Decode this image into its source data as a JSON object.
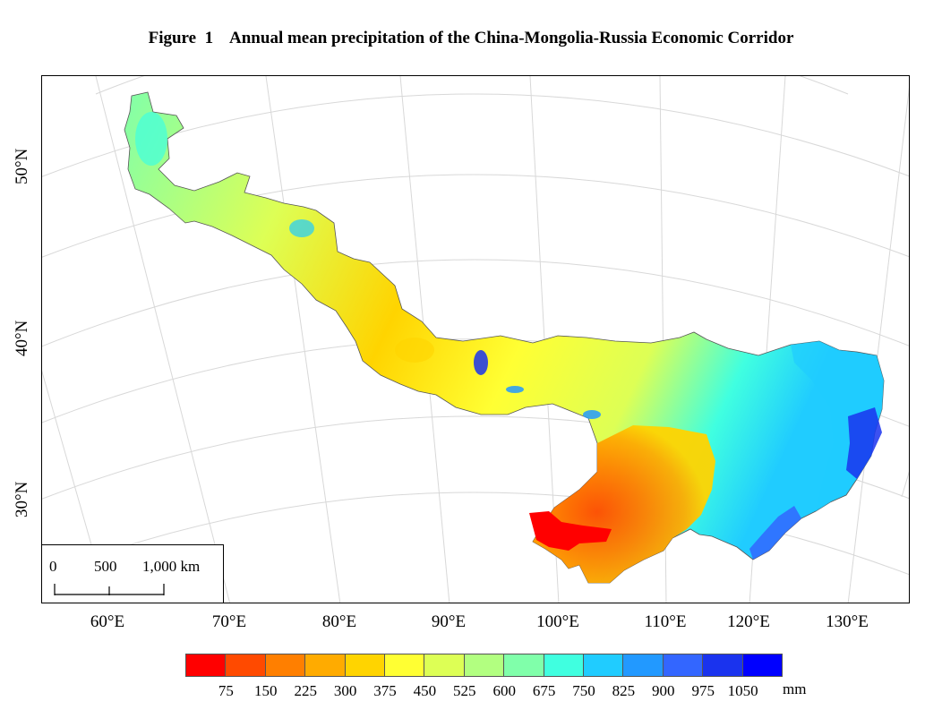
{
  "title": "Figure  1    Annual mean precipitation of the China-Mongolia-Russia Economic Corridor",
  "latitude_labels": [
    "50°N",
    "40°N",
    "30°N"
  ],
  "longitude_labels": [
    "60°E",
    "70°E",
    "80°E",
    "90°E",
    "100°E",
    "110°E",
    "120°E",
    "130°E"
  ],
  "scale_bar": {
    "labels": [
      "0",
      "500",
      "1,000 km"
    ]
  },
  "legend": {
    "unit": "mm",
    "labels": [
      "75",
      "150",
      "225",
      "300",
      "375",
      "450",
      "525",
      "600",
      "675",
      "750",
      "825",
      "900",
      "975",
      "1050"
    ],
    "colors": [
      "#ff0000",
      "#ff4a00",
      "#ff7f00",
      "#ffab00",
      "#ffd400",
      "#ffff33",
      "#ddff55",
      "#b2ff80",
      "#80ffaa",
      "#40ffe0",
      "#20ccff",
      "#2299ff",
      "#3366ff",
      "#1a33ee",
      "#0000ff"
    ]
  }
}
